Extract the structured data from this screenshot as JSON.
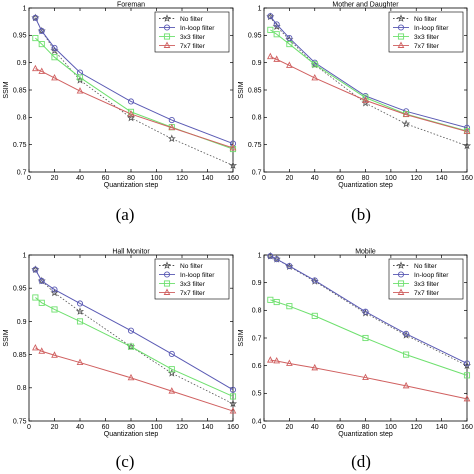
{
  "figure": {
    "legend_entries": [
      "No filter",
      "In-loop filter",
      "3x3 filter",
      "7x7 filter"
    ],
    "series_colors": {
      "No filter": "#555555",
      "In-loop filter": "#5a5ab4",
      "3x3 filter": "#6ee06e",
      "7x7 filter": "#d06060"
    }
  },
  "chart_data": [
    {
      "panel_label": "(a)",
      "type": "line",
      "title": "Foreman",
      "xlabel": "Quantization step",
      "ylabel": "SSIM",
      "xlim": [
        0,
        160
      ],
      "ylim": [
        0.7,
        1
      ],
      "xticks": [
        0,
        20,
        40,
        60,
        80,
        100,
        120,
        140,
        160
      ],
      "yticks": [
        0.7,
        0.75,
        0.8,
        0.85,
        0.9,
        0.95,
        1
      ],
      "ytick_labels": [
        "0.7",
        "0.75",
        "0.8",
        "0.85",
        "0.9",
        "0.95",
        "1"
      ],
      "legend": "top-right",
      "grid": false,
      "x": [
        5,
        10,
        20,
        40,
        80,
        112,
        160
      ],
      "series": [
        {
          "name": "No filter",
          "marker": "star",
          "dashed": true,
          "values": [
            0.982,
            0.958,
            0.922,
            0.868,
            0.799,
            0.761,
            0.712
          ]
        },
        {
          "name": "In-loop filter",
          "marker": "circle",
          "dashed": false,
          "values": [
            0.982,
            0.958,
            0.927,
            0.882,
            0.829,
            0.795,
            0.752
          ]
        },
        {
          "name": "3x3 filter",
          "marker": "square",
          "dashed": false,
          "values": [
            0.945,
            0.934,
            0.91,
            0.873,
            0.81,
            0.782,
            0.742
          ]
        },
        {
          "name": "7x7 filter",
          "marker": "triangle",
          "dashed": false,
          "values": [
            0.889,
            0.884,
            0.872,
            0.848,
            0.806,
            0.781,
            0.744
          ]
        }
      ]
    },
    {
      "panel_label": "(b)",
      "type": "line",
      "title": "Mother and Daughter",
      "xlabel": "Quantization step",
      "ylabel": "SSIM",
      "xlim": [
        0,
        160
      ],
      "ylim": [
        0.7,
        1
      ],
      "xticks": [
        0,
        20,
        40,
        60,
        80,
        100,
        120,
        140,
        160
      ],
      "yticks": [
        0.7,
        0.75,
        0.8,
        0.85,
        0.9,
        0.95,
        1
      ],
      "ytick_labels": [
        "0.7",
        "0.75",
        "0.8",
        "0.85",
        "0.9",
        "0.95",
        "1"
      ],
      "legend": "top-right",
      "grid": false,
      "x": [
        5,
        10,
        20,
        40,
        80,
        112,
        160
      ],
      "series": [
        {
          "name": "No filter",
          "marker": "star",
          "dashed": true,
          "values": [
            0.984,
            0.966,
            0.942,
            0.896,
            0.826,
            0.788,
            0.748
          ]
        },
        {
          "name": "In-loop filter",
          "marker": "circle",
          "dashed": false,
          "values": [
            0.985,
            0.97,
            0.945,
            0.9,
            0.839,
            0.811,
            0.781
          ]
        },
        {
          "name": "3x3 filter",
          "marker": "square",
          "dashed": false,
          "values": [
            0.96,
            0.952,
            0.934,
            0.897,
            0.836,
            0.806,
            0.775
          ]
        },
        {
          "name": "7x7 filter",
          "marker": "triangle",
          "dashed": false,
          "values": [
            0.911,
            0.906,
            0.895,
            0.872,
            0.831,
            0.805,
            0.774
          ]
        }
      ]
    },
    {
      "panel_label": "(c)",
      "type": "line",
      "title": "Hall Monitor",
      "xlabel": "Quantization step",
      "ylabel": "SSIM",
      "xlim": [
        0,
        160
      ],
      "ylim": [
        0.75,
        1
      ],
      "xticks": [
        0,
        20,
        40,
        60,
        80,
        100,
        120,
        140,
        160
      ],
      "yticks": [
        0.75,
        0.8,
        0.85,
        0.9,
        0.95,
        1
      ],
      "ytick_labels": [
        "0.75",
        "0.8",
        "0.85",
        "0.9",
        "0.95",
        "1"
      ],
      "legend": "top-right",
      "grid": false,
      "x": [
        5,
        10,
        20,
        40,
        80,
        112,
        160
      ],
      "series": [
        {
          "name": "No filter",
          "marker": "star",
          "dashed": true,
          "values": [
            0.978,
            0.961,
            0.943,
            0.915,
            0.862,
            0.822,
            0.776
          ]
        },
        {
          "name": "In-loop filter",
          "marker": "circle",
          "dashed": false,
          "values": [
            0.978,
            0.961,
            0.948,
            0.927,
            0.886,
            0.851,
            0.797
          ]
        },
        {
          "name": "3x3 filter",
          "marker": "square",
          "dashed": false,
          "values": [
            0.936,
            0.928,
            0.918,
            0.9,
            0.862,
            0.828,
            0.787
          ]
        },
        {
          "name": "7x7 filter",
          "marker": "triangle",
          "dashed": false,
          "values": [
            0.86,
            0.855,
            0.849,
            0.838,
            0.815,
            0.795,
            0.765
          ]
        }
      ]
    },
    {
      "panel_label": "(d)",
      "type": "line",
      "title": "Mobile",
      "xlabel": "Quantization step",
      "ylabel": "SSIM",
      "xlim": [
        0,
        160
      ],
      "ylim": [
        0.4,
        1
      ],
      "xticks": [
        0,
        20,
        40,
        60,
        80,
        100,
        120,
        140,
        160
      ],
      "yticks": [
        0.4,
        0.5,
        0.6,
        0.7,
        0.8,
        0.9,
        1
      ],
      "ytick_labels": [
        "0.4",
        "0.5",
        "0.6",
        "0.7",
        "0.8",
        "0.9",
        "1"
      ],
      "legend": "top-right",
      "grid": false,
      "x": [
        5,
        10,
        20,
        40,
        80,
        112,
        160
      ],
      "series": [
        {
          "name": "No filter",
          "marker": "star",
          "dashed": true,
          "values": [
            0.996,
            0.985,
            0.958,
            0.905,
            0.79,
            0.71,
            0.6
          ]
        },
        {
          "name": "In-loop filter",
          "marker": "circle",
          "dashed": false,
          "values": [
            0.996,
            0.985,
            0.96,
            0.908,
            0.795,
            0.715,
            0.608
          ]
        },
        {
          "name": "3x3 filter",
          "marker": "square",
          "dashed": false,
          "values": [
            0.838,
            0.83,
            0.815,
            0.78,
            0.7,
            0.64,
            0.565
          ]
        },
        {
          "name": "7x7 filter",
          "marker": "triangle",
          "dashed": false,
          "values": [
            0.62,
            0.617,
            0.608,
            0.592,
            0.557,
            0.527,
            0.48
          ]
        }
      ]
    }
  ]
}
